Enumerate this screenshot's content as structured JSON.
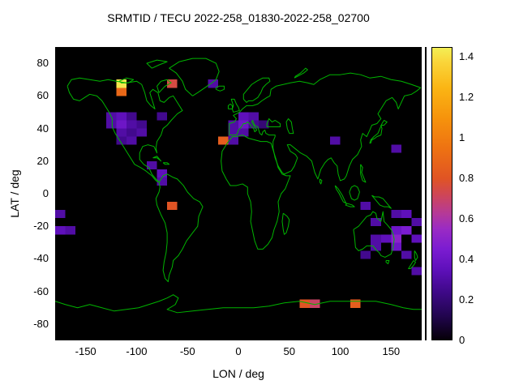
{
  "title": "SRMTID / TECU 2022-258_01830-2022-258_02700",
  "axes": {
    "xlabel": "LON / deg",
    "ylabel": "LAT / deg",
    "x_ticks": [
      -150,
      -100,
      -50,
      0,
      50,
      100,
      150
    ],
    "y_ticks": [
      80,
      60,
      40,
      20,
      0,
      -20,
      -40,
      -60,
      -80
    ],
    "xlim": [
      -180,
      180
    ],
    "ylim": [
      -90,
      90
    ]
  },
  "colorbar": {
    "min": 0,
    "max": 1.45,
    "ticks": [
      {
        "v": 1.4,
        "label": "1.4"
      },
      {
        "v": 1.2,
        "label": "1.2"
      },
      {
        "v": 1.0,
        "label": "1"
      },
      {
        "v": 0.8,
        "label": "0.8"
      },
      {
        "v": 0.6,
        "label": "0.6"
      },
      {
        "v": 0.4,
        "label": "0.4"
      },
      {
        "v": 0.2,
        "label": "0.2"
      },
      {
        "v": 0.0,
        "label": "0"
      }
    ],
    "stops": [
      [
        0.0,
        "#060008"
      ],
      [
        0.12,
        "#220550"
      ],
      [
        0.25,
        "#42098e"
      ],
      [
        0.35,
        "#5f10bb"
      ],
      [
        0.45,
        "#7b1cd1"
      ],
      [
        0.55,
        "#9a2bc4"
      ],
      [
        0.63,
        "#b63a96"
      ],
      [
        0.72,
        "#cf4656"
      ],
      [
        0.8,
        "#e05424"
      ],
      [
        0.95,
        "#ee7212"
      ],
      [
        1.1,
        "#f6930c"
      ],
      [
        1.25,
        "#fbb514"
      ],
      [
        1.38,
        "#fad53a"
      ],
      [
        1.45,
        "#f3ef55"
      ]
    ]
  },
  "colors": {
    "background": "#ffffff",
    "plot_bg": "#000000",
    "coastline": "#00b400",
    "text": "#000000"
  },
  "chart_data": {
    "type": "heatmap",
    "title": "SRMTID / TECU 2022-258_01830-2022-258_02700",
    "xlabel": "LON / deg",
    "ylabel": "LAT / deg",
    "xlim": [
      -180,
      180
    ],
    "ylim": [
      -90,
      90
    ],
    "value_range": [
      0,
      1.45
    ],
    "cell_size_deg": {
      "lon": 10,
      "lat": 5
    },
    "points_format": [
      "lon_center",
      "lat_center",
      "tecu_value"
    ],
    "points": [
      [
        -115,
        67.5,
        1.43
      ],
      [
        -115,
        62.5,
        0.9
      ],
      [
        -65,
        67.5,
        0.75
      ],
      [
        -25,
        67.5,
        0.3
      ],
      [
        -125,
        47.5,
        0.3
      ],
      [
        -115,
        47.5,
        0.35
      ],
      [
        -105,
        47.5,
        0.25
      ],
      [
        -75,
        47.5,
        0.25
      ],
      [
        -125,
        42.5,
        0.3
      ],
      [
        -115,
        42.5,
        0.4
      ],
      [
        -105,
        42.5,
        0.3
      ],
      [
        -95,
        42.5,
        0.25
      ],
      [
        -115,
        37.5,
        0.3
      ],
      [
        -105,
        37.5,
        0.25
      ],
      [
        -95,
        37.5,
        0.3
      ],
      [
        -115,
        32.5,
        0.25
      ],
      [
        -105,
        32.5,
        0.3
      ],
      [
        -85,
        17.5,
        0.3
      ],
      [
        -75,
        12.5,
        0.35
      ],
      [
        -75,
        7.5,
        0.3
      ],
      [
        -65,
        -7.5,
        0.8
      ],
      [
        5,
        47.5,
        0.35
      ],
      [
        15,
        47.5,
        0.3
      ],
      [
        -5,
        42.5,
        0.3
      ],
      [
        5,
        42.5,
        0.4
      ],
      [
        15,
        42.5,
        0.25
      ],
      [
        25,
        42.5,
        0.2
      ],
      [
        -5,
        37.5,
        0.3
      ],
      [
        5,
        37.5,
        0.3
      ],
      [
        -15,
        32.5,
        0.85
      ],
      [
        -5,
        32.5,
        0.3
      ],
      [
        95,
        32.5,
        0.3
      ],
      [
        155,
        27.5,
        0.3
      ],
      [
        -175,
        -12.5,
        0.3
      ],
      [
        -175,
        -22.5,
        0.35
      ],
      [
        -165,
        -22.5,
        0.3
      ],
      [
        125,
        -7.5,
        0.3
      ],
      [
        155,
        -12.5,
        0.3
      ],
      [
        165,
        -12.5,
        0.35
      ],
      [
        175,
        -17.5,
        0.3
      ],
      [
        135,
        -17.5,
        0.3
      ],
      [
        155,
        -22.5,
        0.4
      ],
      [
        165,
        -22.5,
        0.45
      ],
      [
        135,
        -27.5,
        0.3
      ],
      [
        145,
        -27.5,
        0.35
      ],
      [
        155,
        -27.5,
        0.5
      ],
      [
        175,
        -27.5,
        0.35
      ],
      [
        135,
        -32.5,
        0.3
      ],
      [
        155,
        -32.5,
        0.4
      ],
      [
        125,
        -37.5,
        0.25
      ],
      [
        165,
        -37.5,
        0.3
      ],
      [
        175,
        -47.5,
        0.3
      ],
      [
        65,
        -67.5,
        0.8
      ],
      [
        75,
        -67.5,
        0.7
      ],
      [
        115,
        -67.5,
        0.85
      ]
    ],
    "legend_position": "right-colorbar",
    "grid": false
  }
}
